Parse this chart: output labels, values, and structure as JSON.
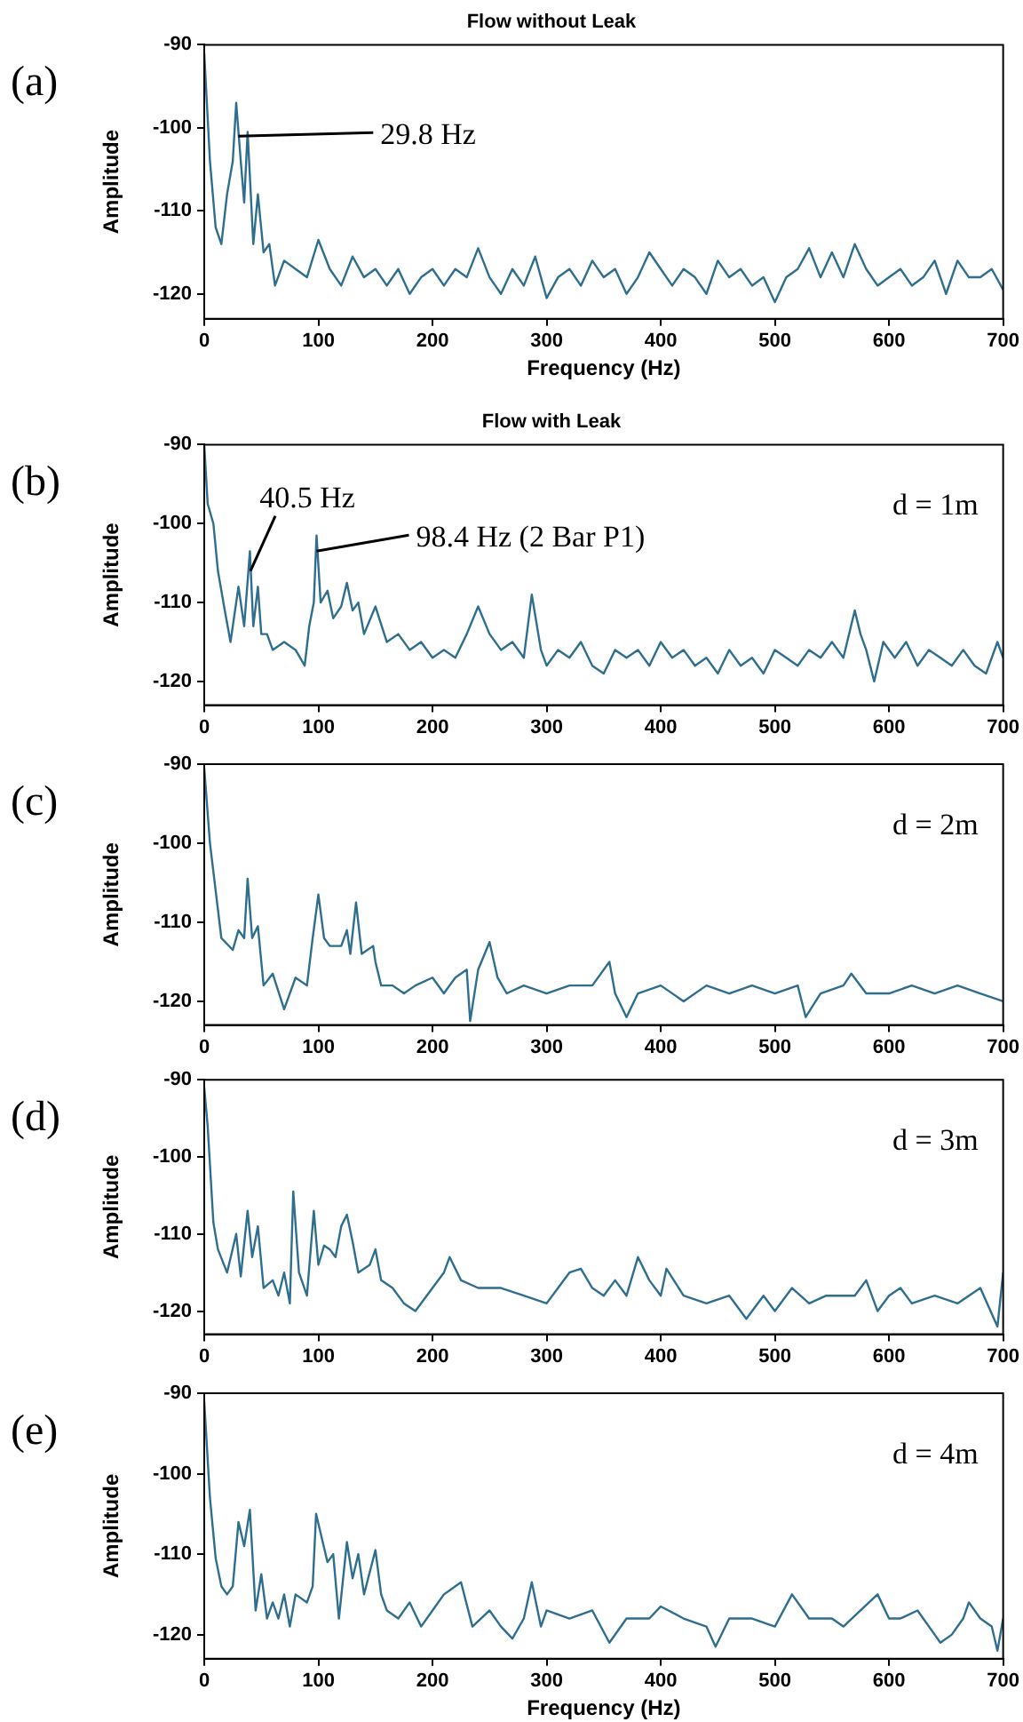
{
  "chart_data": [
    {
      "type": "line",
      "title": "Flow without Leak",
      "xlabel": "Frequency (Hz)",
      "ylabel": "Amplitude",
      "xlim": [
        0,
        700
      ],
      "xticks": [
        0,
        100,
        200,
        300,
        400,
        500,
        600,
        700
      ],
      "ylim": [
        -123,
        -90
      ],
      "yticks": [
        -90,
        -100,
        -110,
        -120
      ],
      "legend": false,
      "annotations": [
        "(a)",
        {
          "text": "29.8 Hz",
          "x": 29.8,
          "y": -101
        }
      ],
      "x": [
        0,
        5,
        10,
        15,
        20,
        25,
        28,
        32,
        35,
        38,
        43,
        47,
        52,
        57,
        62,
        70,
        80,
        90,
        100,
        110,
        120,
        130,
        140,
        150,
        160,
        170,
        180,
        190,
        200,
        210,
        220,
        230,
        240,
        250,
        260,
        270,
        280,
        290,
        300,
        310,
        320,
        330,
        340,
        350,
        360,
        370,
        380,
        390,
        400,
        410,
        420,
        430,
        440,
        450,
        460,
        470,
        480,
        490,
        500,
        510,
        520,
        530,
        540,
        550,
        560,
        570,
        580,
        590,
        600,
        610,
        620,
        630,
        640,
        650,
        660,
        670,
        680,
        690,
        700
      ],
      "series": [
        {
          "color": "#2e6e8e",
          "values": [
            -91,
            -104,
            -112,
            -114,
            -108,
            -104,
            -97,
            -104,
            -109,
            -100.5,
            -114,
            -108,
            -115,
            -114,
            -119,
            -116,
            -117,
            -118,
            -113.5,
            -117,
            -119,
            -115.5,
            -118,
            -117,
            -119,
            -117,
            -120,
            -118,
            -117,
            -119,
            -117,
            -118,
            -114.5,
            -118,
            -120,
            -117,
            -119,
            -115.5,
            -120.5,
            -118,
            -117,
            -119,
            -116,
            -118,
            -117,
            -120,
            -118,
            -115,
            -117,
            -119,
            -117,
            -118,
            -120,
            -116,
            -118,
            -117,
            -119,
            -118,
            -121,
            -118,
            -117,
            -114.5,
            -118,
            -115,
            -118,
            -114,
            -117,
            -119,
            -118,
            -117,
            -119,
            -118,
            -116,
            -120,
            -116,
            -118,
            -118,
            -117,
            -119.5
          ]
        }
      ]
    },
    {
      "type": "line",
      "title": "Flow with Leak",
      "ylabel": "Amplitude",
      "xlim": [
        0,
        700
      ],
      "xticks": [
        0,
        100,
        200,
        300,
        400,
        500,
        600,
        700
      ],
      "ylim": [
        -123,
        -90
      ],
      "yticks": [
        -90,
        -100,
        -110,
        -120
      ],
      "legend": false,
      "annotations": [
        "(b)",
        {
          "text": "40.5 Hz",
          "x": 40.5,
          "y": -106
        },
        {
          "text": "98.4 Hz (2 Bar P1)",
          "x": 98.4,
          "y": -103.5
        },
        "d = 1m"
      ],
      "x": [
        0,
        3,
        8,
        12,
        18,
        23,
        30,
        35,
        40,
        43,
        47,
        50,
        55,
        60,
        70,
        80,
        88,
        92,
        96,
        98.4,
        102,
        108,
        113,
        120,
        125,
        130,
        135,
        140,
        150,
        160,
        170,
        180,
        190,
        200,
        210,
        220,
        230,
        240,
        250,
        260,
        270,
        280,
        287,
        295,
        300,
        310,
        320,
        330,
        340,
        350,
        360,
        370,
        380,
        390,
        400,
        410,
        420,
        430,
        440,
        450,
        460,
        470,
        480,
        490,
        500,
        510,
        520,
        530,
        540,
        550,
        560,
        570,
        575,
        580,
        587,
        595,
        605,
        615,
        625,
        635,
        645,
        655,
        665,
        675,
        685,
        695,
        700
      ],
      "series": [
        {
          "color": "#2e6e8e",
          "values": [
            -90,
            -97.5,
            -100,
            -106,
            -111,
            -115,
            -108,
            -113,
            -103.5,
            -113,
            -108,
            -114,
            -114,
            -116,
            -115,
            -116,
            -118,
            -113,
            -110,
            -101.5,
            -110,
            -108.5,
            -112,
            -110.5,
            -107.5,
            -111,
            -110,
            -114,
            -110.5,
            -115,
            -114,
            -116,
            -115,
            -117,
            -116,
            -117,
            -114,
            -110.5,
            -114,
            -116,
            -115,
            -117,
            -109,
            -116,
            -118,
            -116,
            -117,
            -115,
            -118,
            -119,
            -116,
            -117,
            -116,
            -118,
            -115,
            -117,
            -116,
            -118,
            -117,
            -119,
            -116,
            -118,
            -117,
            -119,
            -116,
            -117,
            -118,
            -116,
            -117,
            -115,
            -117,
            -111,
            -114,
            -116,
            -120,
            -115,
            -117,
            -115,
            -118,
            -116,
            -117,
            -118,
            -116,
            -118,
            -119,
            -115,
            -117
          ]
        }
      ]
    },
    {
      "type": "line",
      "ylabel": "Amplitude",
      "xlim": [
        0,
        700
      ],
      "xticks": [
        0,
        100,
        200,
        300,
        400,
        500,
        600,
        700
      ],
      "ylim": [
        -123,
        -90
      ],
      "yticks": [
        -90,
        -100,
        -110,
        -120
      ],
      "legend": false,
      "annotations": [
        "(c)",
        "d = 2m"
      ],
      "x": [
        0,
        5,
        10,
        15,
        25,
        30,
        35,
        38,
        42,
        47,
        52,
        60,
        70,
        80,
        90,
        95,
        100,
        105,
        110,
        120,
        125,
        128,
        133,
        138,
        148,
        150,
        155,
        165,
        175,
        185,
        200,
        210,
        220,
        230,
        233,
        240,
        250,
        257,
        265,
        280,
        300,
        320,
        340,
        355,
        360,
        370,
        380,
        400,
        420,
        440,
        460,
        480,
        500,
        520,
        527,
        540,
        560,
        567,
        580,
        600,
        620,
        640,
        660,
        680,
        700
      ],
      "series": [
        {
          "color": "#2e6e8e",
          "values": [
            -90.5,
            -100,
            -106,
            -112,
            -113.5,
            -111,
            -112,
            -104.5,
            -112,
            -110.5,
            -118,
            -116.5,
            -121,
            -117,
            -118,
            -112,
            -106.5,
            -112,
            -113,
            -113,
            -111,
            -114,
            -107.5,
            -114,
            -113,
            -115,
            -118,
            -118,
            -119,
            -118,
            -117,
            -119,
            -117,
            -116,
            -122.5,
            -116,
            -112.5,
            -117,
            -119,
            -118,
            -119,
            -118,
            -118,
            -115,
            -119,
            -122,
            -119,
            -118,
            -120,
            -118,
            -119,
            -118,
            -119,
            -118,
            -122,
            -119,
            -118,
            -116.5,
            -119,
            -119,
            -118,
            -119,
            -118,
            -119,
            -120
          ]
        }
      ]
    },
    {
      "type": "line",
      "ylabel": "Amplitude",
      "xlim": [
        0,
        700
      ],
      "xticks": [
        0,
        100,
        200,
        300,
        400,
        500,
        600,
        700
      ],
      "ylim": [
        -123,
        -90
      ],
      "yticks": [
        -90,
        -100,
        -110,
        -120
      ],
      "legend": false,
      "annotations": [
        "(d)",
        "d = 3m"
      ],
      "x": [
        0,
        3,
        8,
        12,
        20,
        28,
        32,
        38,
        42,
        47,
        52,
        60,
        65,
        70,
        75,
        78,
        83,
        90,
        96,
        100,
        105,
        110,
        115,
        120,
        125,
        130,
        135,
        145,
        150,
        155,
        165,
        175,
        185,
        200,
        210,
        215,
        225,
        240,
        260,
        280,
        300,
        310,
        320,
        330,
        340,
        350,
        360,
        370,
        380,
        390,
        400,
        405,
        420,
        440,
        460,
        475,
        490,
        500,
        515,
        530,
        545,
        560,
        570,
        580,
        590,
        600,
        610,
        620,
        640,
        660,
        680,
        695,
        700
      ],
      "series": [
        {
          "color": "#2e6e8e",
          "values": [
            -91,
            -96,
            -108.5,
            -112,
            -115,
            -110,
            -115.5,
            -107,
            -113,
            -109,
            -117,
            -116,
            -118,
            -115,
            -119,
            -104.5,
            -115,
            -118,
            -107,
            -114,
            -111.5,
            -112,
            -113,
            -109,
            -107.5,
            -111,
            -115,
            -114,
            -112,
            -116,
            -117,
            -119,
            -120,
            -117,
            -115,
            -113,
            -116,
            -117,
            -117,
            -118,
            -119,
            -117,
            -115,
            -114.5,
            -117,
            -118,
            -116,
            -118,
            -113,
            -116,
            -118,
            -114.5,
            -118,
            -119,
            -118,
            -121,
            -118,
            -120,
            -117,
            -119,
            -118,
            -118,
            -118,
            -116,
            -120,
            -118,
            -117,
            -119,
            -118,
            -119,
            -117,
            -122,
            -115
          ]
        }
      ]
    },
    {
      "type": "line",
      "xlabel": "Frequency (Hz)",
      "ylabel": "Amplitude",
      "xlim": [
        0,
        700
      ],
      "xticks": [
        0,
        100,
        200,
        300,
        400,
        500,
        600,
        700
      ],
      "ylim": [
        -123,
        -90
      ],
      "yticks": [
        -90,
        -100,
        -110,
        -120
      ],
      "legend": false,
      "annotations": [
        "(e)",
        "d = 4m"
      ],
      "x": [
        0,
        5,
        10,
        15,
        20,
        25,
        30,
        35,
        40,
        45,
        50,
        55,
        60,
        65,
        70,
        75,
        80,
        90,
        95,
        98,
        103,
        108,
        113,
        118,
        125,
        130,
        135,
        140,
        150,
        155,
        160,
        170,
        180,
        190,
        200,
        210,
        220,
        225,
        235,
        250,
        260,
        270,
        280,
        287,
        295,
        300,
        320,
        340,
        355,
        370,
        390,
        400,
        420,
        440,
        448,
        460,
        480,
        500,
        515,
        530,
        550,
        560,
        575,
        590,
        600,
        610,
        625,
        640,
        645,
        655,
        665,
        670,
        680,
        690,
        695,
        700
      ],
      "series": [
        {
          "color": "#2e6e8e",
          "values": [
            -91,
            -103,
            -110.5,
            -114,
            -115,
            -114,
            -106,
            -109,
            -104.5,
            -117,
            -112.5,
            -118,
            -116,
            -118,
            -115,
            -119,
            -115,
            -116,
            -114,
            -105,
            -108,
            -111,
            -110,
            -118,
            -108.5,
            -113,
            -110,
            -115,
            -109.5,
            -115,
            -117,
            -118,
            -116,
            -119,
            -117,
            -115,
            -114,
            -113.5,
            -119,
            -117,
            -119,
            -120.5,
            -118,
            -113.5,
            -119,
            -117,
            -118,
            -117,
            -121,
            -118,
            -118,
            -116.5,
            -118,
            -119,
            -121.5,
            -118,
            -118,
            -119,
            -115,
            -118,
            -118,
            -119,
            -117,
            -115,
            -118,
            -118,
            -117,
            -120,
            -121,
            -120,
            -118,
            -116,
            -118,
            -119,
            -122,
            -118
          ]
        }
      ]
    }
  ]
}
